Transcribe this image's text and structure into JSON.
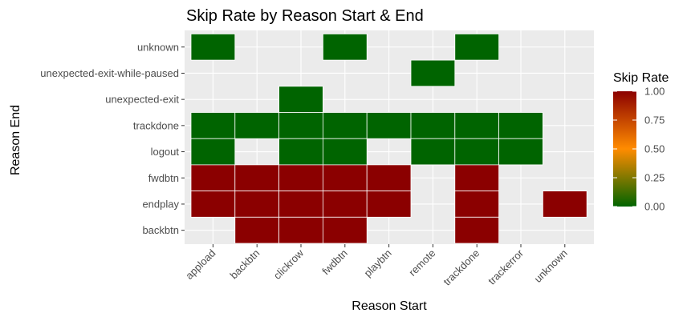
{
  "chart_data": {
    "type": "heatmap",
    "title": "Skip Rate by Reason Start & End",
    "xlabel": "Reason Start",
    "ylabel": "Reason End",
    "x_categories": [
      "appload",
      "backbtn",
      "clickrow",
      "fwdbtn",
      "playbtn",
      "remote",
      "trackdone",
      "trackerror",
      "unknown"
    ],
    "y_categories": [
      "backbtn",
      "endplay",
      "fwdbtn",
      "logout",
      "trackdone",
      "unexpected-exit",
      "unexpected-exit-while-paused",
      "unknown"
    ],
    "cells": [
      {
        "x": "appload",
        "y": "unknown",
        "value": 0
      },
      {
        "x": "fwdbtn",
        "y": "unknown",
        "value": 0
      },
      {
        "x": "trackdone",
        "y": "unknown",
        "value": 0
      },
      {
        "x": "remote",
        "y": "unexpected-exit-while-paused",
        "value": 0
      },
      {
        "x": "clickrow",
        "y": "unexpected-exit",
        "value": 0
      },
      {
        "x": "appload",
        "y": "trackdone",
        "value": 0
      },
      {
        "x": "backbtn",
        "y": "trackdone",
        "value": 0
      },
      {
        "x": "clickrow",
        "y": "trackdone",
        "value": 0
      },
      {
        "x": "fwdbtn",
        "y": "trackdone",
        "value": 0
      },
      {
        "x": "playbtn",
        "y": "trackdone",
        "value": 0
      },
      {
        "x": "remote",
        "y": "trackdone",
        "value": 0
      },
      {
        "x": "trackdone",
        "y": "trackdone",
        "value": 0
      },
      {
        "x": "trackerror",
        "y": "trackdone",
        "value": 0
      },
      {
        "x": "appload",
        "y": "logout",
        "value": 0
      },
      {
        "x": "clickrow",
        "y": "logout",
        "value": 0
      },
      {
        "x": "fwdbtn",
        "y": "logout",
        "value": 0
      },
      {
        "x": "remote",
        "y": "logout",
        "value": 0
      },
      {
        "x": "trackdone",
        "y": "logout",
        "value": 0
      },
      {
        "x": "trackerror",
        "y": "logout",
        "value": 0
      },
      {
        "x": "appload",
        "y": "fwdbtn",
        "value": 1
      },
      {
        "x": "backbtn",
        "y": "fwdbtn",
        "value": 1
      },
      {
        "x": "clickrow",
        "y": "fwdbtn",
        "value": 1
      },
      {
        "x": "fwdbtn",
        "y": "fwdbtn",
        "value": 1
      },
      {
        "x": "playbtn",
        "y": "fwdbtn",
        "value": 1
      },
      {
        "x": "trackdone",
        "y": "fwdbtn",
        "value": 1
      },
      {
        "x": "appload",
        "y": "endplay",
        "value": 1
      },
      {
        "x": "backbtn",
        "y": "endplay",
        "value": 1
      },
      {
        "x": "clickrow",
        "y": "endplay",
        "value": 1
      },
      {
        "x": "fwdbtn",
        "y": "endplay",
        "value": 1
      },
      {
        "x": "playbtn",
        "y": "endplay",
        "value": 1
      },
      {
        "x": "trackdone",
        "y": "endplay",
        "value": 1
      },
      {
        "x": "unknown",
        "y": "endplay",
        "value": 1
      },
      {
        "x": "backbtn",
        "y": "backbtn",
        "value": 1
      },
      {
        "x": "clickrow",
        "y": "backbtn",
        "value": 1
      },
      {
        "x": "fwdbtn",
        "y": "backbtn",
        "value": 1
      },
      {
        "x": "trackdone",
        "y": "backbtn",
        "value": 1
      }
    ],
    "legend": {
      "title": "Skip Rate",
      "ticks": [
        "1.00",
        "0.75",
        "0.50",
        "0.25",
        "0.00"
      ],
      "tick_values": [
        1,
        0.75,
        0.5,
        0.25,
        0
      ],
      "placement": "right"
    },
    "colors": {
      "low": "#006400",
      "mid": "#ff8c00",
      "high": "#8b0000",
      "panel_background": "#ebebeb",
      "grid": "#ffffff"
    },
    "value_range": [
      0,
      1
    ],
    "grid": true
  }
}
